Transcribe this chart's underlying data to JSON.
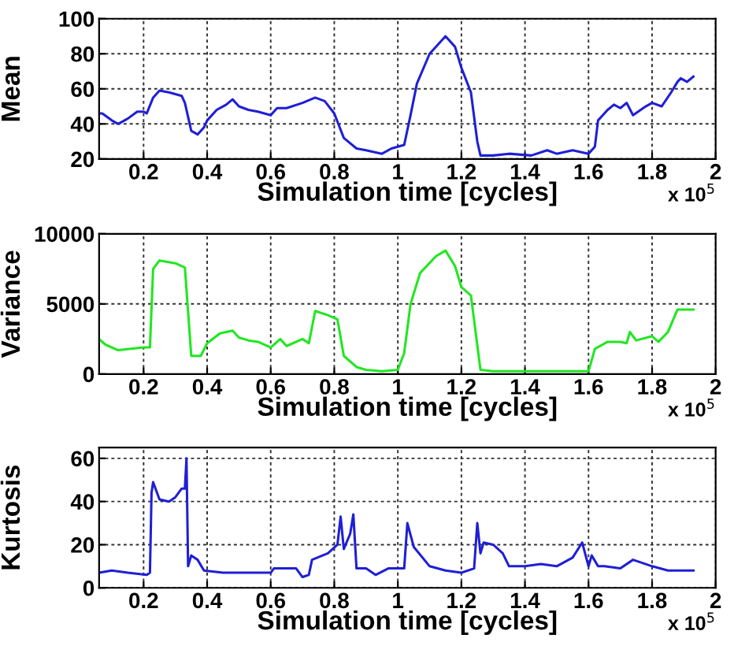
{
  "chart_data": [
    {
      "type": "line",
      "xlabel": "Simulation time [cycles]",
      "ylabel": "Mean",
      "annotations": [
        "x 10$^{5}$"
      ],
      "xlim": [
        0.06,
        2.0
      ],
      "xticks": [
        0.2,
        0.4,
        0.6,
        0.8,
        1,
        1.2,
        1.4,
        1.6,
        1.8,
        2
      ],
      "ylim": [
        20,
        100
      ],
      "yticks": [
        20,
        40,
        60,
        80,
        100
      ],
      "grid": true,
      "line_style": "solid",
      "series": [
        {
          "color": "#1f1fd6",
          "x": [
            0.06,
            0.07,
            0.1,
            0.12,
            0.15,
            0.18,
            0.2,
            0.21,
            0.23,
            0.25,
            0.28,
            0.32,
            0.33,
            0.35,
            0.37,
            0.39,
            0.4,
            0.43,
            0.46,
            0.48,
            0.5,
            0.53,
            0.56,
            0.6,
            0.62,
            0.65,
            0.7,
            0.74,
            0.77,
            0.8,
            0.83,
            0.87,
            0.9,
            0.95,
            0.98,
            1.02,
            1.04,
            1.06,
            1.1,
            1.15,
            1.18,
            1.2,
            1.23,
            1.25,
            1.26,
            1.3,
            1.35,
            1.42,
            1.47,
            1.5,
            1.55,
            1.6,
            1.62,
            1.63,
            1.66,
            1.68,
            1.7,
            1.72,
            1.74,
            1.78,
            1.8,
            1.83,
            1.86,
            1.88,
            1.89,
            1.91,
            1.93
          ],
          "values": [
            46,
            46,
            42,
            40,
            43,
            47,
            47,
            46,
            55,
            59,
            58,
            56,
            52,
            36,
            34,
            38,
            42,
            48,
            51,
            54,
            50,
            48,
            47,
            45,
            49,
            49,
            52,
            55,
            53,
            46,
            32,
            26,
            25,
            23,
            26,
            28,
            45,
            63,
            80,
            90,
            84,
            72,
            58,
            30,
            22,
            22,
            23,
            22,
            25,
            23,
            25,
            23,
            27,
            42,
            48,
            51,
            49,
            52,
            45,
            50,
            52,
            50,
            58,
            64,
            66,
            64,
            67
          ]
        }
      ]
    },
    {
      "type": "line",
      "xlabel": "Simulation time [cycles]",
      "ylabel": "Variance",
      "annotations": [
        "x 10$^{5}$"
      ],
      "xlim": [
        0.06,
        2.0
      ],
      "xticks": [
        0.2,
        0.4,
        0.6,
        0.8,
        1,
        1.2,
        1.4,
        1.6,
        1.8,
        2
      ],
      "ylim": [
        0,
        10000
      ],
      "yticks": [
        0,
        5000,
        10000
      ],
      "grid": true,
      "line_style": "solid",
      "series": [
        {
          "color": "#22e622",
          "x": [
            0.06,
            0.08,
            0.12,
            0.16,
            0.2,
            0.22,
            0.23,
            0.25,
            0.3,
            0.33,
            0.35,
            0.38,
            0.4,
            0.44,
            0.48,
            0.5,
            0.53,
            0.56,
            0.6,
            0.63,
            0.65,
            0.7,
            0.72,
            0.74,
            0.78,
            0.81,
            0.83,
            0.87,
            0.9,
            0.95,
            1.0,
            1.02,
            1.04,
            1.07,
            1.12,
            1.15,
            1.18,
            1.2,
            1.23,
            1.26,
            1.3,
            1.6,
            1.62,
            1.66,
            1.7,
            1.72,
            1.73,
            1.75,
            1.8,
            1.82,
            1.85,
            1.88,
            1.93
          ],
          "values": [
            2500,
            2100,
            1700,
            1800,
            1900,
            1900,
            7500,
            8100,
            7900,
            7600,
            1300,
            1300,
            2200,
            2900,
            3100,
            2600,
            2400,
            2300,
            1900,
            2500,
            2000,
            2500,
            2200,
            4500,
            4200,
            3900,
            1300,
            500,
            300,
            200,
            300,
            1500,
            5000,
            7200,
            8400,
            8800,
            7700,
            6200,
            5600,
            300,
            200,
            200,
            1800,
            2300,
            2300,
            2200,
            3000,
            2400,
            2700,
            2300,
            3000,
            4600,
            4600
          ]
        }
      ]
    },
    {
      "type": "line",
      "xlabel": "Simulation time [cycles]",
      "ylabel": "Kurtosis",
      "annotations": [
        "x 10$^{5}$"
      ],
      "xlim": [
        0.06,
        2.0
      ],
      "xticks": [
        0.2,
        0.4,
        0.6,
        0.8,
        1,
        1.2,
        1.4,
        1.6,
        1.8,
        2
      ],
      "ylim": [
        0,
        65
      ],
      "yticks": [
        0,
        20,
        40,
        60
      ],
      "grid": true,
      "line_style": "solid",
      "series": [
        {
          "color": "#1f1fd6",
          "x": [
            0.06,
            0.1,
            0.15,
            0.21,
            0.22,
            0.225,
            0.23,
            0.25,
            0.28,
            0.3,
            0.32,
            0.33,
            0.335,
            0.34,
            0.35,
            0.37,
            0.39,
            0.45,
            0.5,
            0.6,
            0.61,
            0.68,
            0.7,
            0.72,
            0.73,
            0.78,
            0.81,
            0.82,
            0.83,
            0.85,
            0.86,
            0.87,
            0.9,
            0.93,
            0.97,
            1.02,
            1.03,
            1.05,
            1.1,
            1.15,
            1.2,
            1.24,
            1.25,
            1.26,
            1.27,
            1.3,
            1.33,
            1.35,
            1.4,
            1.45,
            1.5,
            1.55,
            1.58,
            1.6,
            1.61,
            1.63,
            1.65,
            1.7,
            1.74,
            1.8,
            1.85,
            1.9,
            1.93
          ],
          "values": [
            7,
            8,
            7,
            6,
            7,
            44,
            49,
            41,
            40,
            42,
            46,
            46,
            60,
            10,
            15,
            13,
            8,
            7,
            7,
            7,
            9,
            9,
            5,
            6,
            13,
            16,
            20,
            33,
            18,
            25,
            34,
            9,
            9,
            6,
            9,
            9,
            30,
            19,
            10,
            8,
            7,
            9,
            30,
            16,
            21,
            20,
            16,
            10,
            10,
            11,
            10,
            14,
            21,
            10,
            15,
            10,
            10,
            9,
            13,
            10,
            8,
            8,
            8
          ]
        }
      ]
    }
  ]
}
